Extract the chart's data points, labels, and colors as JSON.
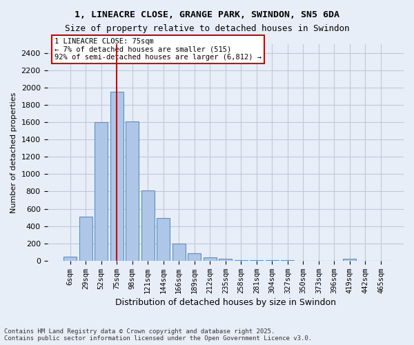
{
  "title1": "1, LINEACRE CLOSE, GRANGE PARK, SWINDON, SN5 6DA",
  "title2": "Size of property relative to detached houses in Swindon",
  "xlabel": "Distribution of detached houses by size in Swindon",
  "ylabel": "Number of detached properties",
  "footnote": "Contains HM Land Registry data © Crown copyright and database right 2025.\nContains public sector information licensed under the Open Government Licence v3.0.",
  "categories": [
    "6sqm",
    "29sqm",
    "52sqm",
    "75sqm",
    "98sqm",
    "121sqm",
    "144sqm",
    "166sqm",
    "189sqm",
    "212sqm",
    "235sqm",
    "258sqm",
    "281sqm",
    "304sqm",
    "327sqm",
    "350sqm",
    "373sqm",
    "396sqm",
    "419sqm",
    "442sqm",
    "465sqm"
  ],
  "values": [
    50,
    510,
    1600,
    1950,
    1610,
    810,
    490,
    200,
    90,
    40,
    20,
    10,
    5,
    3,
    3,
    0,
    0,
    0,
    25,
    0,
    0
  ],
  "bar_color": "#aec6e8",
  "bar_edge_color": "#5a8fc0",
  "grid_color": "#c0c8d8",
  "background_color": "#e8eef8",
  "vline_x_index": 3,
  "vline_color": "#cc0000",
  "annotation_text": "1 LINEACRE CLOSE: 75sqm\n← 7% of detached houses are smaller (515)\n92% of semi-detached houses are larger (6,812) →",
  "annotation_box_color": "#ffffff",
  "annotation_box_edge": "#cc0000",
  "ylim": [
    0,
    2500
  ],
  "yticks": [
    0,
    200,
    400,
    600,
    800,
    1000,
    1200,
    1400,
    1600,
    1800,
    2000,
    2200,
    2400
  ]
}
